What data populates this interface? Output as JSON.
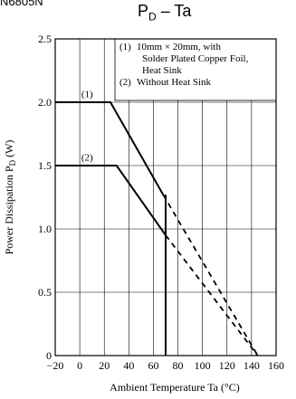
{
  "doc_fragment": "N6805N",
  "chart_data": {
    "type": "line",
    "title_main": "P",
    "title_sub": "D",
    "title_rest": " – Ta",
    "xlabel": "Ambient Temperature  Ta (°C)",
    "ylabel_main": "Power Dissipation  P",
    "ylabel_sub": "D",
    "ylabel_unit": " (W)",
    "xlim": [
      -20,
      160
    ],
    "ylim": [
      0,
      2.5
    ],
    "x_ticks": [
      -20,
      0,
      20,
      40,
      60,
      80,
      100,
      120,
      140,
      160
    ],
    "x_tick_labels": [
      "−20",
      "0",
      "20",
      "40",
      "60",
      "80",
      "100",
      "120",
      "140",
      "160"
    ],
    "y_ticks": [
      0,
      0.5,
      1.0,
      1.5,
      2.0,
      2.5
    ],
    "y_tick_labels": [
      "0",
      "0.5",
      "1.0",
      "1.5",
      "2.0",
      "2.5"
    ],
    "grid": true,
    "legend_placement": "top-right",
    "legend": [
      {
        "tag": "(1)",
        "lines": [
          "10mm × 20mm, with",
          "Solder Plated Copper Foil,",
          "Heat Sink"
        ]
      },
      {
        "tag": "(2)",
        "lines": [
          "Without Heat Sink"
        ]
      }
    ],
    "series": [
      {
        "name": "(1)",
        "solid": [
          [
            -20,
            2.0
          ],
          [
            25,
            2.0
          ],
          [
            68,
            1.27
          ]
        ],
        "dashed": [
          [
            68,
            1.27
          ],
          [
            145,
            0
          ]
        ]
      },
      {
        "name": "(2)",
        "solid": [
          [
            -20,
            1.5
          ],
          [
            30,
            1.5
          ],
          [
            70,
            0.95
          ]
        ],
        "dashed": [
          [
            70,
            0.95
          ],
          [
            145,
            0
          ]
        ]
      }
    ],
    "annotations": [
      {
        "text": "(1)",
        "x": 6,
        "y": 2.04
      },
      {
        "text": "(2)",
        "x": 6,
        "y": 1.54
      }
    ],
    "cutoff": {
      "x": 70,
      "y_top": 1.27,
      "y_bottom": 0
    }
  }
}
